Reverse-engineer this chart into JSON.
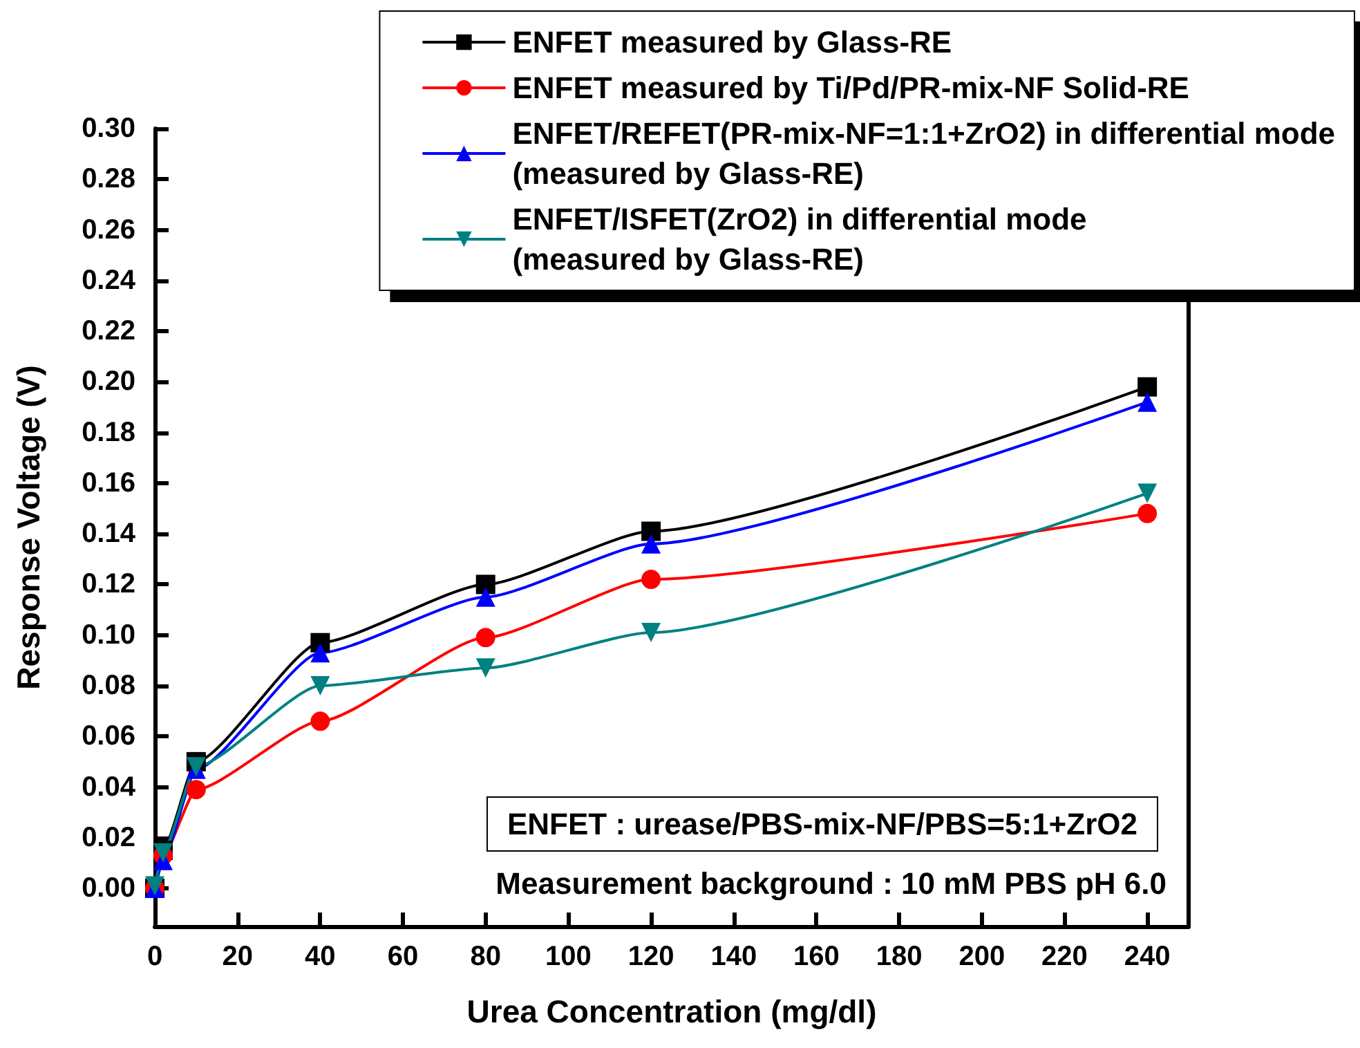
{
  "chart_data": {
    "type": "line",
    "xlabel": "Urea Concentration (mg/dl)",
    "ylabel": "Response Voltage (V)",
    "xlim": [
      0,
      250
    ],
    "xticks": [
      0,
      20,
      40,
      60,
      80,
      100,
      120,
      140,
      160,
      180,
      200,
      220,
      240
    ],
    "ylim": [
      -0.015,
      0.3
    ],
    "yticks": [
      {
        "value": 0,
        "label": "0.00"
      },
      {
        "value": 0.02,
        "label": "0.02"
      },
      {
        "value": 0.04,
        "label": "0.04"
      },
      {
        "value": 0.06,
        "label": "0.06"
      },
      {
        "value": 0.08,
        "label": "0.08"
      },
      {
        "value": 0.1,
        "label": "0.10"
      },
      {
        "value": 0.12,
        "label": "0.12"
      },
      {
        "value": 0.14,
        "label": "0.14"
      },
      {
        "value": 0.16,
        "label": "0.16"
      },
      {
        "value": 0.18,
        "label": "0.18"
      },
      {
        "value": 0.2,
        "label": "0.20"
      },
      {
        "value": 0.22,
        "label": "0.22"
      },
      {
        "value": 0.24,
        "label": "0.24"
      },
      {
        "value": 0.26,
        "label": "0.26"
      },
      {
        "value": 0.28,
        "label": "0.28"
      },
      {
        "value": 0.3,
        "label": "0.30"
      }
    ],
    "x": [
      0,
      2,
      10,
      40,
      80,
      120,
      240
    ],
    "series": [
      {
        "name": "ENFET measured by Glass-RE",
        "color": "#000000",
        "marker": "square",
        "values": [
          0.0,
          0.015,
          0.05,
          0.097,
          0.12,
          0.141,
          0.198
        ]
      },
      {
        "name": "ENFET measured by Ti/Pd/PR-mix-NF Solid-RE",
        "color": "#ff0000",
        "marker": "circle",
        "values": [
          0.0,
          0.013,
          0.039,
          0.066,
          0.099,
          0.122,
          0.148
        ]
      },
      {
        "name": "ENFET/REFET(PR-mix-NF=1:1+ZrO2) in differential mode\n(measured by Glass-RE)",
        "color": "#0000ff",
        "marker": "triangle",
        "values": [
          0.0,
          0.011,
          0.047,
          0.093,
          0.115,
          0.136,
          0.192
        ]
      },
      {
        "name": "ENFET/ISFET(ZrO2) in differential mode\n(measured by Glass-RE)",
        "color": "#008080",
        "marker": "triangle-down",
        "values": [
          0.001,
          0.014,
          0.048,
          0.08,
          0.087,
          0.101,
          0.156
        ]
      }
    ],
    "annotations": [
      "ENFET : urease/PBS-mix-NF/PBS=5:1+ZrO2",
      "Measurement background : 10 mM PBS pH 6.0"
    ],
    "legend": "top right",
    "grid": false
  }
}
